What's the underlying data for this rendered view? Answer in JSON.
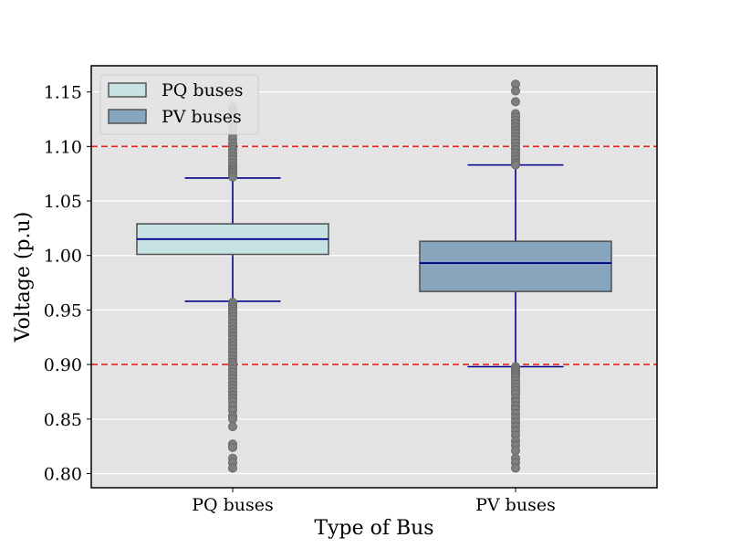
{
  "chart_data": {
    "type": "box",
    "xlabel": "Type of Bus",
    "ylabel": "Voltage (p.u)",
    "categories": [
      "PQ buses",
      "PV buses"
    ],
    "ylim": [
      0.787,
      1.174
    ],
    "yticks": [
      0.8,
      0.85,
      0.9,
      0.95,
      1.0,
      1.05,
      1.1,
      1.15
    ],
    "ytick_labels": [
      "0.80",
      "0.85",
      "0.90",
      "0.95",
      "1.00",
      "1.05",
      "1.10",
      "1.15"
    ],
    "grid": "horizontal",
    "legend_position": "top-left",
    "reference_lines": [
      {
        "value": 1.1,
        "color": "#e8231f",
        "style": "dashed"
      },
      {
        "value": 0.9,
        "color": "#e8231f",
        "style": "dashed"
      }
    ],
    "series": [
      {
        "name": "PQ buses",
        "fill": "#c7e2e3",
        "whisker_low": 0.958,
        "q1": 1.001,
        "median": 1.015,
        "q3": 1.029,
        "whisker_high": 1.071,
        "outliers": [
          1.136,
          1.131,
          1.126,
          1.121,
          1.116,
          1.111,
          1.107,
          1.103,
          1.1,
          1.097,
          1.094,
          1.091,
          1.088,
          1.085,
          1.082,
          1.08,
          1.078,
          1.076,
          1.074,
          1.072,
          0.957,
          0.955,
          0.953,
          0.951,
          0.949,
          0.947,
          0.944,
          0.941,
          0.938,
          0.935,
          0.932,
          0.929,
          0.926,
          0.923,
          0.92,
          0.917,
          0.914,
          0.911,
          0.908,
          0.905,
          0.902,
          0.899,
          0.896,
          0.893,
          0.89,
          0.887,
          0.884,
          0.881,
          0.878,
          0.875,
          0.872,
          0.869,
          0.866,
          0.862,
          0.858,
          0.853,
          0.85,
          0.843,
          0.827,
          0.824,
          0.814,
          0.81,
          0.805
        ]
      },
      {
        "name": "PV buses",
        "fill": "#87a6bd",
        "whisker_low": 0.898,
        "q1": 0.967,
        "median": 0.993,
        "q3": 1.013,
        "whisker_high": 1.083,
        "outliers": [
          1.157,
          1.151,
          1.141,
          1.13,
          1.127,
          1.124,
          1.121,
          1.118,
          1.115,
          1.112,
          1.109,
          1.106,
          1.103,
          1.1,
          1.097,
          1.094,
          1.091,
          1.088,
          1.085,
          1.083,
          0.898,
          0.896,
          0.894,
          0.892,
          0.89,
          0.888,
          0.885,
          0.882,
          0.879,
          0.876,
          0.873,
          0.869,
          0.866,
          0.862,
          0.859,
          0.855,
          0.851,
          0.847,
          0.843,
          0.839,
          0.835,
          0.83,
          0.826,
          0.821,
          0.814,
          0.81,
          0.805
        ]
      }
    ]
  }
}
